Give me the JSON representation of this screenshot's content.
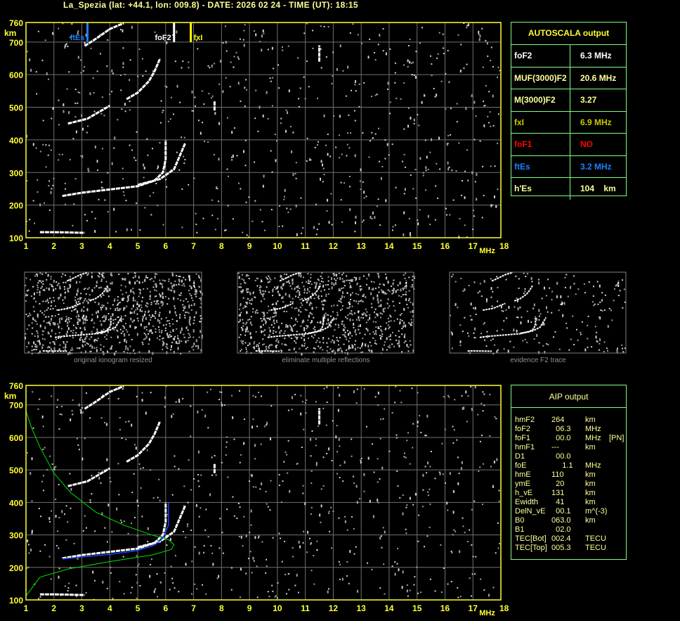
{
  "title": "La_Spezia (lat: +44.1, lon: 009.8) - DATE: 2026 02 24 - TIME (UT): 18:15",
  "colors": {
    "axis": "#ffff33",
    "grid": "#707070",
    "table_border": "#80ff80",
    "foF2": "#ffffff",
    "fxI": "#ffff00",
    "ftEs": "#1e7fff",
    "foF1": "#ff0000",
    "profile": "#00e000",
    "fit": "#2040ff"
  },
  "autoscala": {
    "header": "AUTOSCALA output",
    "rows": [
      {
        "label": "foF2",
        "value": "6.3 MHz",
        "color": "#ffffff"
      },
      {
        "label": "MUF(3000)F2",
        "value": "20.6 MHz",
        "color": "#ffff99"
      },
      {
        "label": "M(3000)F2",
        "value": "3.27",
        "color": "#ffff99"
      },
      {
        "label": "fxI",
        "value": "6.9 MHz",
        "color": "#c8c800"
      },
      {
        "label": "foF1",
        "value": "NO",
        "color": "#ff0000"
      },
      {
        "label": "ftEs",
        "value": "3.2 MHz",
        "color": "#1e7fff"
      },
      {
        "label": "h'Es",
        "value": "104    km",
        "color": "#ffff99"
      }
    ]
  },
  "aip": {
    "header": "AIP output",
    "rows": [
      {
        "name": "hmF2",
        "value": "264",
        "unit": "km",
        "extra": ""
      },
      {
        "name": "foF2",
        "value": "  06.3",
        "unit": "MHz",
        "extra": ""
      },
      {
        "name": "foF1",
        "value": "  00.0",
        "unit": "MHz",
        "extra": "[PN]"
      },
      {
        "name": "hmF1",
        "value": "---",
        "unit": "km",
        "extra": ""
      },
      {
        "name": "D1",
        "value": "  00.0",
        "unit": "",
        "extra": ""
      },
      {
        "name": "foE",
        "value": "     1.1",
        "unit": "MHz",
        "extra": ""
      },
      {
        "name": "hmE",
        "value": "110",
        "unit": "km",
        "extra": ""
      },
      {
        "name": "ymE",
        "value": "  20",
        "unit": "km",
        "extra": ""
      },
      {
        "name": "h_vE",
        "value": "131",
        "unit": "km",
        "extra": ""
      },
      {
        "name": "Ewidth",
        "value": "  41",
        "unit": "km",
        "extra": ""
      },
      {
        "name": "DelN_vE",
        "value": "  00.1",
        "unit": "m^(-3)",
        "extra": ""
      },
      {
        "name": "B0",
        "value": "063.0",
        "unit": "km",
        "extra": ""
      },
      {
        "name": "B1",
        "value": "  02.0",
        "unit": "",
        "extra": ""
      },
      {
        "name": "TEC[Bot]",
        "value": "002.4",
        "unit": "TECU",
        "extra": ""
      },
      {
        "name": "TEC[Top]",
        "value": "005.3",
        "unit": "TECU",
        "extra": ""
      }
    ]
  },
  "captions": [
    "original ionogram resized",
    "eliminate multiple reflections",
    "evidence F2 trace"
  ],
  "chart_data": {
    "type": "scatter",
    "xlabel": "MHz",
    "ylabel": "km",
    "xlim": [
      1,
      18
    ],
    "ylim": [
      100,
      760
    ],
    "x_ticks": [
      "1",
      "2",
      "3",
      "4",
      "5",
      "6",
      "7",
      "8",
      "9",
      "10",
      "11",
      "12",
      "13",
      "14",
      "15",
      "16",
      "17",
      "18"
    ],
    "y_ticks": [
      "100",
      "200",
      "300",
      "400",
      "500",
      "600",
      "700",
      "760"
    ],
    "grid": true,
    "markers": [
      {
        "label": "ftEs",
        "freq": 3.2,
        "color": "#1e7fff"
      },
      {
        "label": "foF2",
        "freq": 6.3,
        "color": "#ffffff"
      },
      {
        "label": "fxI",
        "freq": 6.9,
        "color": "#ffff00"
      }
    ],
    "traces": [
      {
        "id": "es-trace",
        "points": [
          [
            1.5,
            117
          ],
          [
            2,
            117
          ],
          [
            2.6,
            116
          ],
          [
            3.1,
            115
          ]
        ]
      },
      {
        "id": "f2-o-trace",
        "points": [
          [
            2.3,
            228
          ],
          [
            3,
            238
          ],
          [
            4,
            248
          ],
          [
            5,
            258
          ],
          [
            5.6,
            275
          ],
          [
            5.9,
            300
          ],
          [
            6.0,
            340
          ],
          [
            6.0,
            400
          ]
        ]
      },
      {
        "id": "f2-x-trace",
        "points": [
          [
            5.0,
            262
          ],
          [
            5.8,
            280
          ],
          [
            6.3,
            310
          ],
          [
            6.5,
            350
          ],
          [
            6.7,
            390
          ]
        ]
      },
      {
        "id": "f2-o-2hop",
        "points": [
          [
            2.5,
            450
          ],
          [
            3.2,
            465
          ],
          [
            4.0,
            505
          ]
        ]
      },
      {
        "id": "f2-2hop-upper",
        "points": [
          [
            4.6,
            525
          ],
          [
            5.0,
            545
          ],
          [
            5.4,
            580
          ],
          [
            5.6,
            610
          ],
          [
            5.8,
            650
          ]
        ]
      },
      {
        "id": "f2-3hop",
        "points": [
          [
            3.1,
            688
          ],
          [
            3.5,
            710
          ],
          [
            4.0,
            740
          ],
          [
            4.5,
            758
          ]
        ]
      },
      {
        "id": "spread-7.8",
        "points": [
          [
            7.75,
            490
          ],
          [
            7.75,
            520
          ]
        ]
      },
      {
        "id": "spread-11.5",
        "points": [
          [
            11.5,
            640
          ],
          [
            11.5,
            690
          ]
        ]
      }
    ],
    "profile": [
      [
        1.0,
        112
      ],
      [
        1.5,
        170
      ],
      [
        2.5,
        195
      ],
      [
        4.0,
        218
      ],
      [
        5.5,
        238
      ],
      [
        6.2,
        255
      ],
      [
        6.3,
        270
      ],
      [
        6.1,
        285
      ],
      [
        5.5,
        300
      ],
      [
        4.5,
        330
      ],
      [
        3.5,
        370
      ],
      [
        2.6,
        430
      ],
      [
        2.0,
        490
      ],
      [
        1.5,
        570
      ],
      [
        1.2,
        630
      ],
      [
        1.0,
        680
      ]
    ],
    "fit": [
      [
        2.3,
        226
      ],
      [
        3,
        232
      ],
      [
        4,
        240
      ],
      [
        5,
        252
      ],
      [
        5.6,
        268
      ],
      [
        5.9,
        290
      ],
      [
        6.1,
        330
      ],
      [
        6.1,
        400
      ]
    ]
  }
}
